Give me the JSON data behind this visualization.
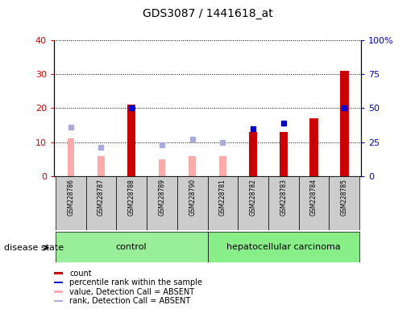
{
  "title": "GDS3087 / 1441618_at",
  "samples": [
    "GSM228786",
    "GSM228787",
    "GSM228788",
    "GSM228789",
    "GSM228790",
    "GSM228781",
    "GSM228782",
    "GSM228783",
    "GSM228784",
    "GSM228785"
  ],
  "count_values": [
    null,
    null,
    21,
    null,
    null,
    null,
    13,
    13,
    17,
    31
  ],
  "percentile_values": [
    null,
    null,
    20,
    null,
    null,
    null,
    14,
    15.5,
    null,
    20
  ],
  "absent_value": [
    11,
    6,
    null,
    5,
    6,
    6,
    null,
    null,
    null,
    null
  ],
  "absent_rank": [
    14.5,
    8.5,
    null,
    9.2,
    10.8,
    9.8,
    null,
    null,
    null,
    null
  ],
  "control_group": [
    "GSM228786",
    "GSM228787",
    "GSM228788",
    "GSM228789",
    "GSM228790"
  ],
  "cancer_group": [
    "GSM228781",
    "GSM228782",
    "GSM228783",
    "GSM228784",
    "GSM228785"
  ],
  "ylim_left": [
    0,
    40
  ],
  "ylim_right": [
    0,
    100
  ],
  "yticks_left": [
    0,
    10,
    20,
    30,
    40
  ],
  "yticks_right": [
    0,
    25,
    50,
    75,
    100
  ],
  "yticklabels_right": [
    "0",
    "25",
    "50",
    "75",
    "100%"
  ],
  "color_count": "#cc0000",
  "color_percentile": "#0000cc",
  "color_absent_value": "#ffaaaa",
  "color_absent_rank": "#aaaadd",
  "color_control_bg": "#99ee99",
  "color_cancer_bg": "#88ee88",
  "color_label_bg": "#cccccc",
  "legend_items": [
    {
      "color": "#cc0000",
      "label": "count"
    },
    {
      "color": "#0000cc",
      "label": "percentile rank within the sample"
    },
    {
      "color": "#ffaaaa",
      "label": "value, Detection Call = ABSENT"
    },
    {
      "color": "#aaaadd",
      "label": "rank, Detection Call = ABSENT"
    }
  ]
}
